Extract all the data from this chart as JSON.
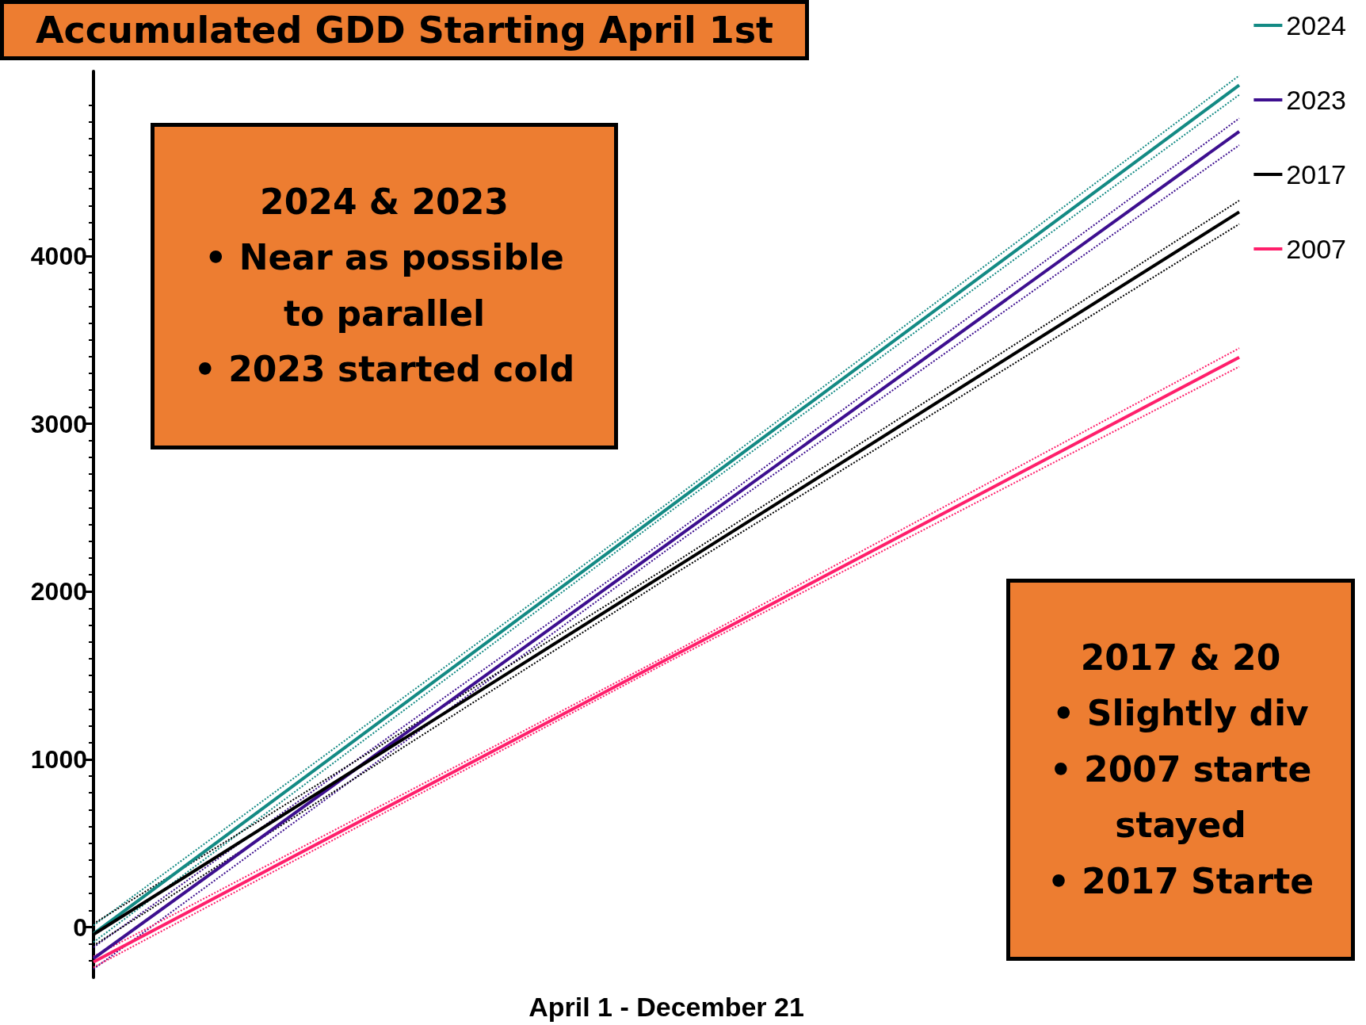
{
  "chart_data": {
    "type": "line",
    "title": "Accumulated GDD Starting April 1st",
    "xlabel": "April 1 - December 21",
    "categories": [
      null,
      null,
      null
    ],
    "series": [
      {
        "name": "2024",
        "color": "#138a84",
        "values": [
          -40,
          2489,
          5018
        ]
      },
      {
        "color": "#138a84",
        "values": [
          -90,
          2460,
          4960
        ],
        "line_style": "dotted"
      },
      {
        "color": "#138a84",
        "values": [
          10,
          2520,
          5075
        ],
        "line_style": "dotted"
      },
      {
        "name": "2023",
        "color": "#3d0f8f",
        "values": [
          -187,
          2278,
          4742
        ]
      },
      {
        "color": "#3d0f8f",
        "values": [
          -250,
          2245,
          4660
        ],
        "line_style": "dotted"
      },
      {
        "color": "#3d0f8f",
        "values": [
          -120,
          2310,
          4820
        ],
        "line_style": "dotted"
      },
      {
        "name": "2017",
        "color": "#000000",
        "values": [
          -44,
          2109,
          4262
        ]
      },
      {
        "color": "#000000",
        "values": [
          -110,
          2075,
          4190
        ],
        "line_style": "dotted"
      },
      {
        "color": "#000000",
        "values": [
          20,
          2140,
          4330
        ],
        "line_style": "dotted"
      },
      {
        "name": "2007",
        "color": "#ff1f6b",
        "values": [
          -208,
          1594,
          3396
        ]
      },
      {
        "color": "#ff1f6b",
        "values": [
          -240,
          1575,
          3340
        ],
        "line_style": "dotted"
      },
      {
        "color": "#ff1f6b",
        "values": [
          -175,
          1615,
          3450
        ],
        "line_style": "dotted"
      }
    ],
    "ylim": [
      -300,
      5100
    ],
    "yticks": [
      0,
      1000,
      2000,
      3000,
      4000
    ],
    "tick_labels": "y",
    "grid": false,
    "legend": "right",
    "marker": "none",
    "line_style": "solid",
    "annotations": [
      "2024 & 2023\n•  Near as possible to parallel\n•  2023 started cold",
      "2017 & 20\n•  Slightly div\n•  2007 starte\nstayed\n•  2017 Starte"
    ]
  }
}
